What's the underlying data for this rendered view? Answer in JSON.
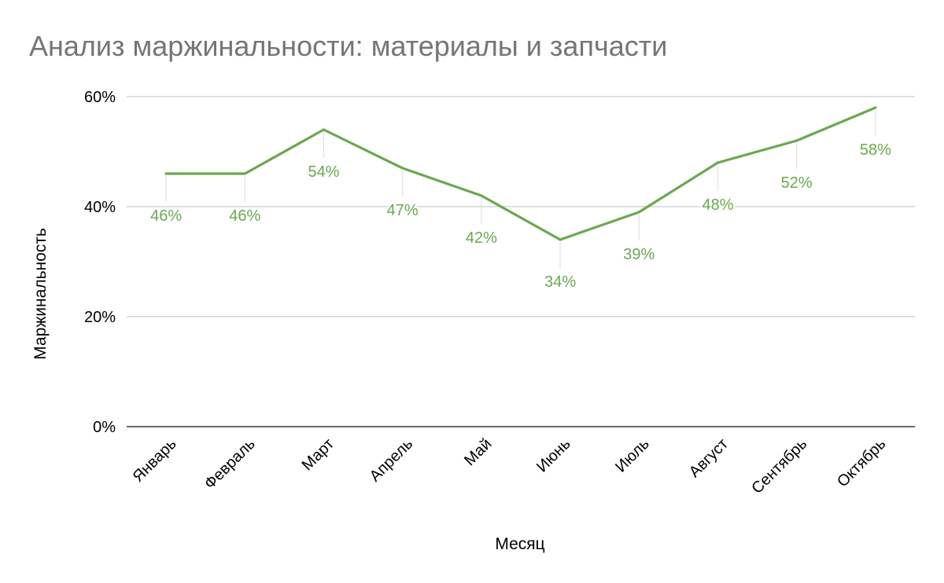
{
  "chart_data": {
    "type": "line",
    "title": "Анализ маржинальности: материалы и запчасти",
    "xlabel": "Месяц",
    "ylabel": "Маржинальность",
    "categories": [
      "Январь",
      "Февраль",
      "Март",
      "Апрель",
      "Май",
      "Июнь",
      "Июль",
      "Август",
      "Сентябрь",
      "Октябрь"
    ],
    "series": [
      {
        "values": [
          46,
          46,
          54,
          47,
          42,
          34,
          39,
          48,
          52,
          58
        ],
        "data_labels": [
          "46%",
          "46%",
          "54%",
          "47%",
          "42%",
          "34%",
          "39%",
          "48%",
          "52%",
          "58%"
        ],
        "color": "#6aa84f"
      }
    ],
    "ylim": [
      0,
      60
    ],
    "yticks": [
      0,
      20,
      40,
      60
    ],
    "ytick_labels": [
      "0%",
      "20%",
      "40%",
      "60%"
    ],
    "grid": true,
    "legend": "none"
  }
}
